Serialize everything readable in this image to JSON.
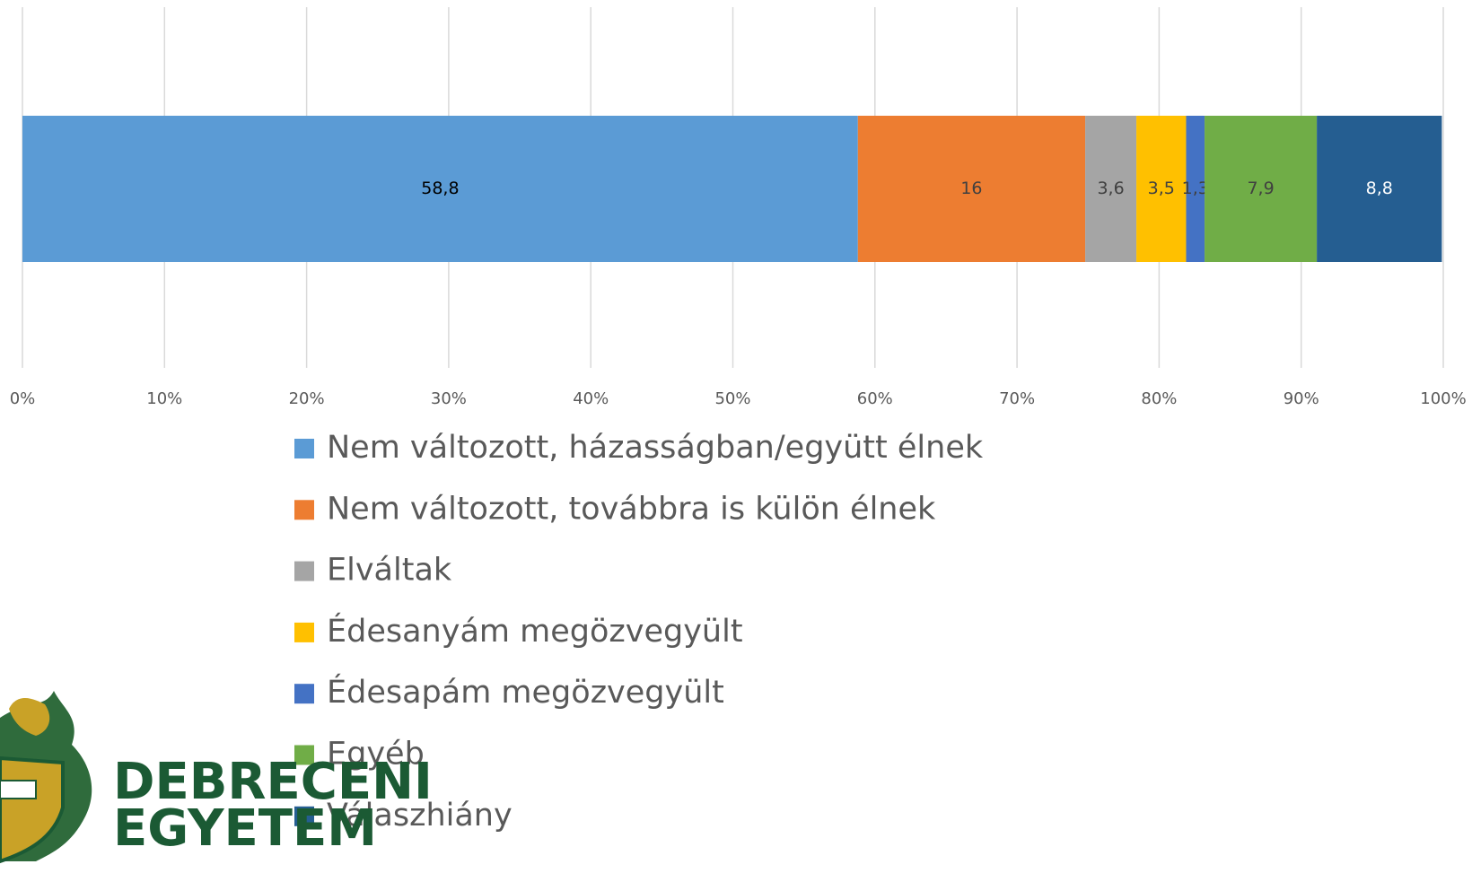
{
  "chart_data": {
    "type": "stacked_bar_horizontal",
    "categories": [
      null
    ],
    "series": [
      {
        "name": "Nem változott, házasságban/együtt élnek",
        "color": "#5b9bd5",
        "label_color": "#000000",
        "values": [
          58.8
        ],
        "value_labels": [
          "58,8"
        ]
      },
      {
        "name": "Nem változott, továbbra is külön élnek",
        "color": "#ed7d31",
        "label_color": "#404040",
        "values": [
          16
        ]
      },
      {
        "name": "Elváltak",
        "color": "#a5a5a5",
        "label_color": "#404040",
        "values": [
          3.6
        ],
        "value_labels": [
          "3,6"
        ]
      },
      {
        "name": "Édesanyám megözvegyült",
        "color": "#ffc000",
        "label_color": "#404040",
        "values": [
          3.5
        ],
        "value_labels": [
          "3,5"
        ]
      },
      {
        "name": "Édesapám megözvegyült",
        "color": "#4472c4",
        "label_color": "#404040",
        "values": [
          1.3
        ],
        "value_labels": [
          "1,3"
        ]
      },
      {
        "name": "Egyéb",
        "color": "#70ad47",
        "label_color": "#404040",
        "values": [
          7.9
        ],
        "value_labels": [
          "7,9"
        ]
      },
      {
        "name": "Válaszhiány",
        "color": "#255e91",
        "label_color": "#ffffff",
        "values": [
          8.8
        ],
        "value_labels": [
          "8,8"
        ]
      }
    ],
    "xlim": [
      0,
      100
    ],
    "xticks": [
      {
        "value": 0,
        "label": "0%"
      },
      {
        "value": 10,
        "label": "10%"
      },
      {
        "value": 20,
        "label": "20%"
      },
      {
        "value": 30,
        "label": "30%"
      },
      {
        "value": 40,
        "label": "40%"
      },
      {
        "value": 50,
        "label": "50%"
      },
      {
        "value": 60,
        "label": "60%"
      },
      {
        "value": 70,
        "label": "70%"
      },
      {
        "value": 80,
        "label": "80%"
      },
      {
        "value": 90,
        "label": "90%"
      },
      {
        "value": 100,
        "label": "100%"
      }
    ],
    "grid": true,
    "legend": "bottom"
  },
  "logo": {
    "lines": [
      "DEBRECENI",
      "EGYETEM"
    ]
  }
}
